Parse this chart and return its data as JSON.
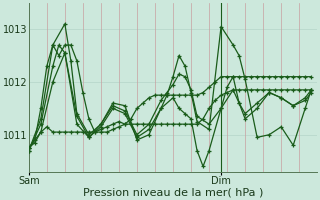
{
  "background_color": "#cce8dc",
  "plot_bg_color": "#cce8dc",
  "grid_color_h": "#b8d8cc",
  "grid_color_v": "#c8a0a0",
  "line_color": "#1a5c1a",
  "xlabel": "Pression niveau de la mer( hPa )",
  "xlabel_fontsize": 8,
  "ytick_labels": [
    "1013",
    "1012",
    "1011"
  ],
  "ytick_vals": [
    1013,
    1012,
    1011
  ],
  "ylim": [
    1010.3,
    1013.5
  ],
  "xlim": [
    0,
    48
  ],
  "sam_x": 0,
  "dim_x": 32,
  "vertical_line_x": 32,
  "n_x_gridlines": 17,
  "series": [
    {
      "x": [
        0,
        1,
        2,
        3,
        4,
        5,
        6,
        7,
        8,
        9,
        10,
        11,
        12,
        13,
        14,
        15,
        16,
        17,
        18,
        19,
        20,
        21,
        22,
        23,
        24,
        25,
        26,
        27,
        28,
        29,
        30,
        31,
        32,
        33,
        34,
        35,
        36,
        37,
        38,
        39,
        40,
        41,
        42,
        43,
        44,
        45,
        46,
        47
      ],
      "y": [
        1010.75,
        1010.9,
        1011.5,
        1012.3,
        1012.7,
        1012.5,
        1012.7,
        1012.7,
        1012.4,
        1011.8,
        1011.3,
        1011.05,
        1011.05,
        1011.05,
        1011.1,
        1011.15,
        1011.2,
        1011.3,
        1011.5,
        1011.6,
        1011.7,
        1011.75,
        1011.75,
        1011.75,
        1011.75,
        1011.75,
        1011.75,
        1011.75,
        1011.75,
        1011.8,
        1011.9,
        1012.0,
        1012.1,
        1012.1,
        1012.1,
        1012.1,
        1012.1,
        1012.1,
        1012.1,
        1012.1,
        1012.1,
        1012.1,
        1012.1,
        1012.1,
        1012.1,
        1012.1,
        1012.1,
        1012.1
      ]
    },
    {
      "x": [
        0,
        1,
        2,
        3,
        4,
        5,
        6,
        7,
        8,
        9,
        10,
        11,
        12,
        13,
        14,
        15,
        16,
        17,
        18,
        19,
        20,
        21,
        22,
        23,
        24,
        25,
        26,
        27,
        28,
        29,
        30,
        31,
        32,
        33,
        34,
        35,
        36,
        37,
        38,
        39,
        40,
        41,
        42,
        43,
        44,
        45,
        46,
        47
      ],
      "y": [
        1010.75,
        1010.85,
        1011.05,
        1011.15,
        1011.05,
        1011.05,
        1011.05,
        1011.05,
        1011.05,
        1011.05,
        1011.05,
        1011.05,
        1011.1,
        1011.15,
        1011.2,
        1011.25,
        1011.2,
        1011.2,
        1011.2,
        1011.2,
        1011.2,
        1011.2,
        1011.2,
        1011.2,
        1011.2,
        1011.2,
        1011.2,
        1011.2,
        1011.2,
        1011.3,
        1011.5,
        1011.65,
        1011.75,
        1011.8,
        1011.85,
        1011.85,
        1011.85,
        1011.85,
        1011.85,
        1011.85,
        1011.85,
        1011.85,
        1011.85,
        1011.85,
        1011.85,
        1011.85,
        1011.85,
        1011.85
      ]
    },
    {
      "x": [
        0,
        2,
        4,
        6,
        7,
        8,
        10,
        12,
        14,
        16,
        18,
        20,
        22,
        24,
        25,
        26,
        27,
        28,
        29,
        30,
        32,
        33,
        34,
        35,
        36,
        38,
        40,
        42,
        44,
        46,
        47
      ],
      "y": [
        1010.7,
        1011.3,
        1012.7,
        1013.1,
        1012.4,
        1011.4,
        1011.0,
        1011.2,
        1011.6,
        1011.55,
        1010.9,
        1011.0,
        1011.5,
        1011.7,
        1011.5,
        1011.4,
        1011.3,
        1010.7,
        1010.4,
        1010.7,
        1011.5,
        1011.9,
        1012.1,
        1011.6,
        1011.3,
        1011.5,
        1011.8,
        1011.7,
        1011.55,
        1011.7,
        1011.85
      ]
    },
    {
      "x": [
        0,
        2,
        4,
        6,
        8,
        10,
        12,
        14,
        16,
        18,
        20,
        22,
        23,
        24,
        25,
        26,
        27,
        28,
        30,
        32,
        34,
        35,
        36,
        38,
        40,
        42,
        44,
        46,
        47
      ],
      "y": [
        1010.75,
        1011.05,
        1012.0,
        1012.55,
        1011.2,
        1010.95,
        1011.2,
        1011.55,
        1011.45,
        1011.0,
        1011.2,
        1011.65,
        1011.8,
        1011.95,
        1012.15,
        1012.1,
        1011.85,
        1011.35,
        1011.2,
        1011.5,
        1011.85,
        1011.6,
        1011.4,
        1011.6,
        1011.8,
        1011.7,
        1011.55,
        1011.65,
        1011.8
      ]
    },
    {
      "x": [
        0,
        2,
        4,
        5,
        6,
        8,
        10,
        12,
        14,
        16,
        18,
        20,
        22,
        23,
        24,
        25,
        26,
        27,
        28,
        30,
        32,
        34,
        35,
        36,
        38,
        40,
        42,
        44,
        46,
        47
      ],
      "y": [
        1010.7,
        1011.2,
        1012.3,
        1012.7,
        1012.55,
        1011.35,
        1010.95,
        1011.15,
        1011.5,
        1011.4,
        1010.95,
        1011.1,
        1011.5,
        1011.75,
        1012.1,
        1012.5,
        1012.3,
        1011.8,
        1011.25,
        1011.1,
        1013.05,
        1012.7,
        1012.5,
        1012.05,
        1010.95,
        1011.0,
        1011.15,
        1010.8,
        1011.5,
        1011.85
      ]
    }
  ]
}
